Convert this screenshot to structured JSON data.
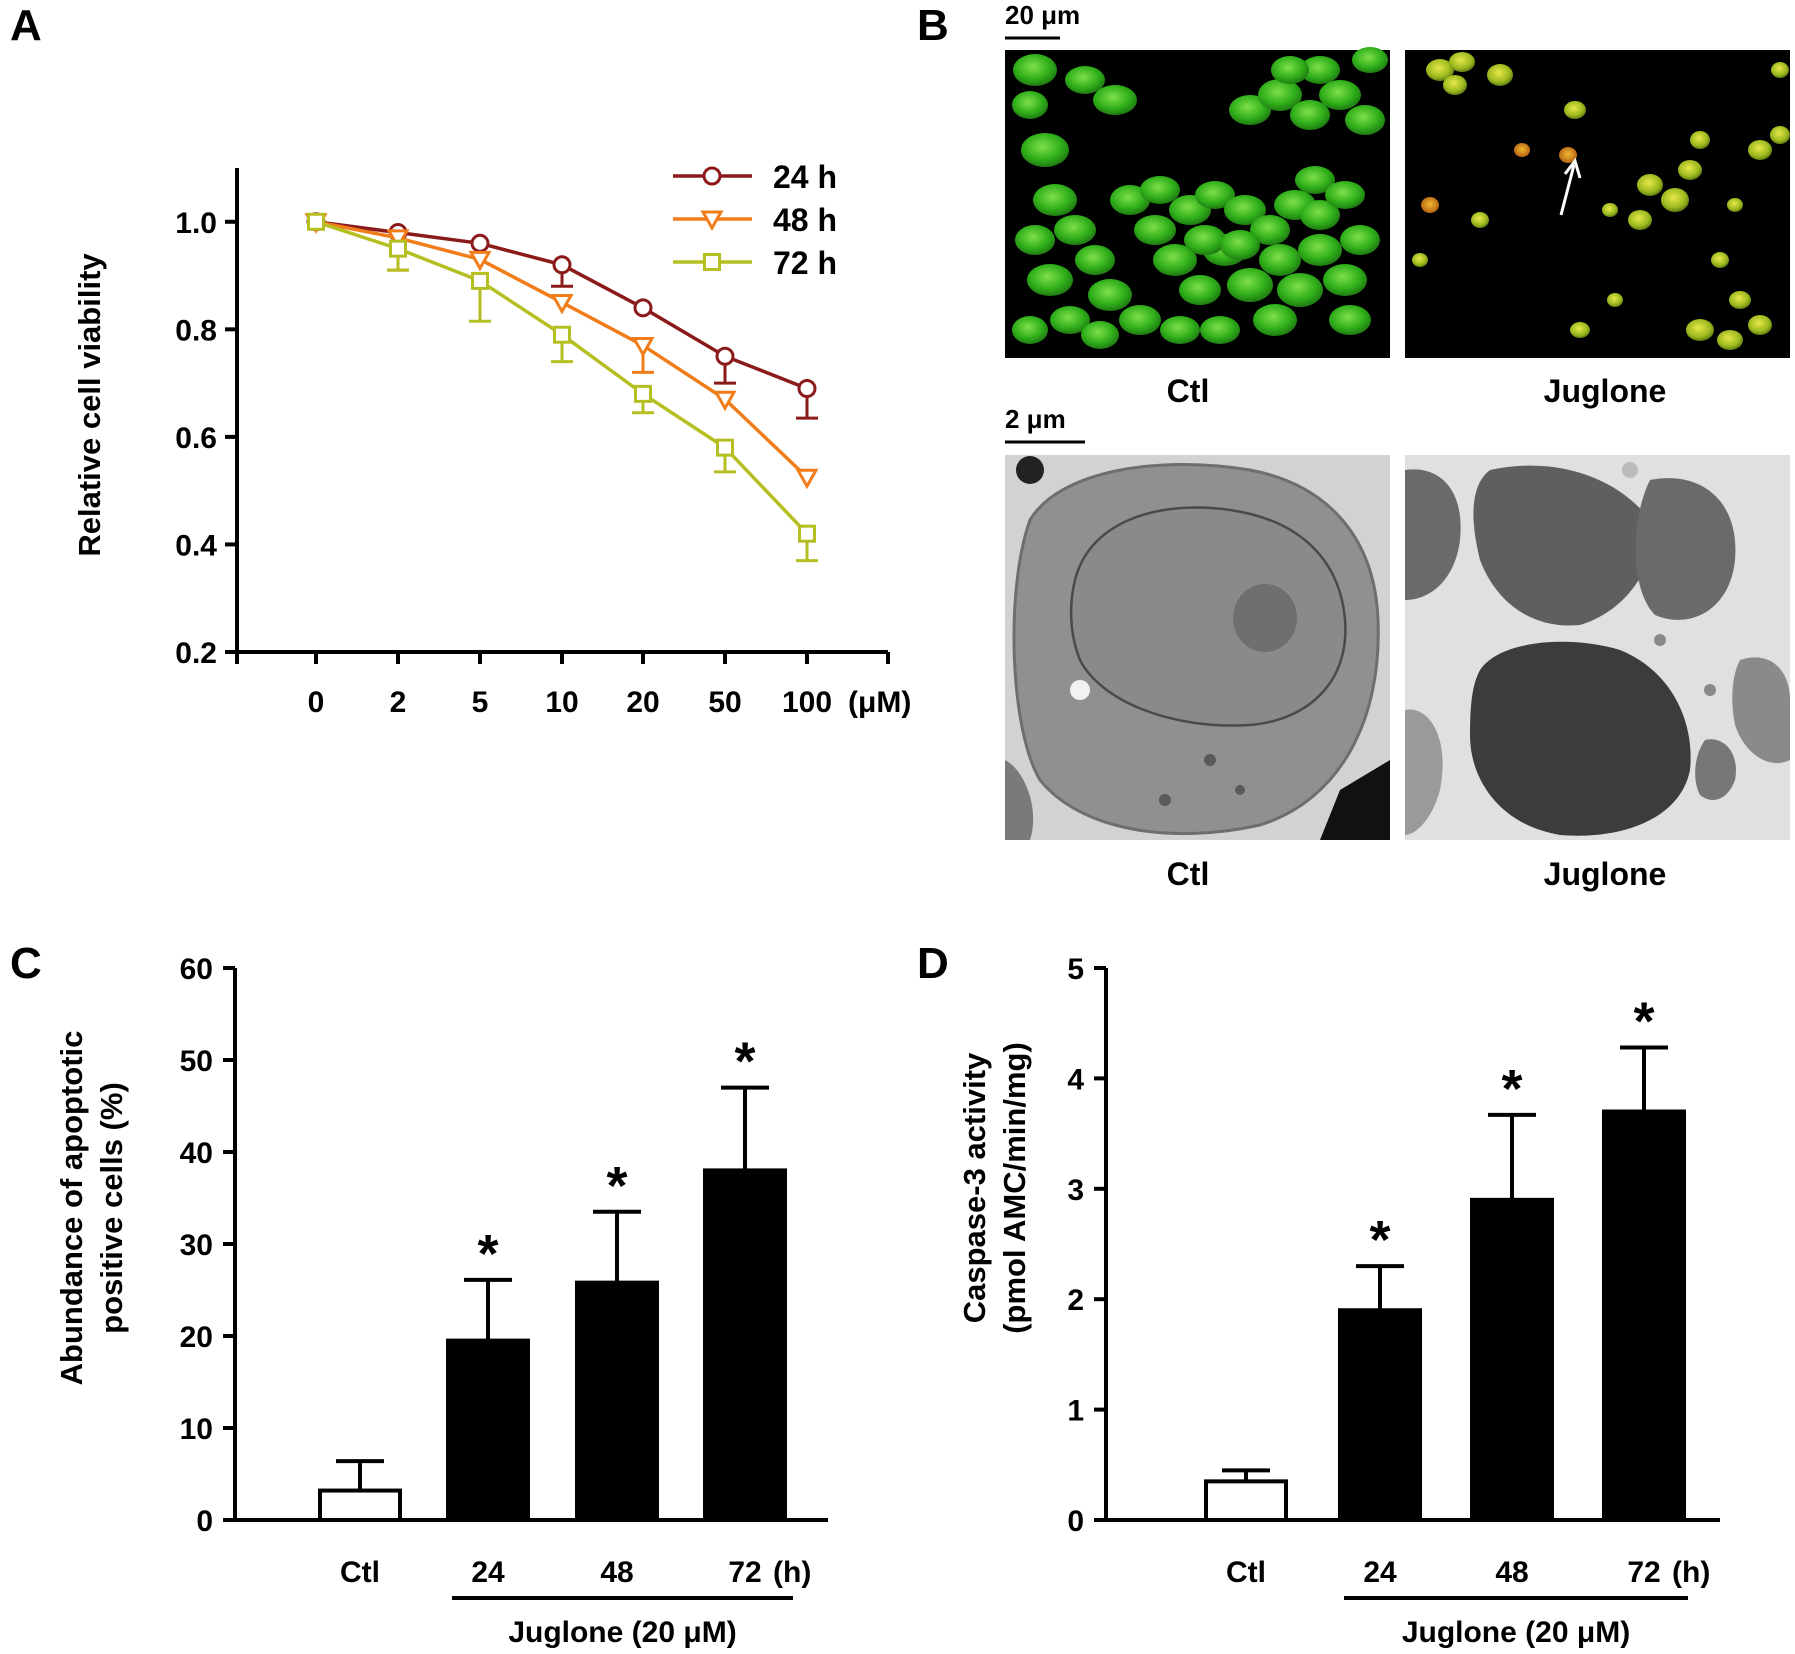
{
  "panels": {
    "A": "A",
    "B": "B",
    "C": "C",
    "D": "D"
  },
  "micrographs": {
    "top_scale": "20 μm",
    "bottom_scale": "2 μm",
    "labels": [
      "Ctl",
      "Juglone",
      "Ctl",
      "Juglone"
    ]
  },
  "chart_data": [
    {
      "panel": "A",
      "type": "line",
      "xlabel": "",
      "x_unit": "(μM)",
      "ylabel": "Relative cell viability",
      "ylim": [
        0.2,
        1.1
      ],
      "yticks": [
        0.2,
        0.4,
        0.6,
        0.8,
        1.0
      ],
      "categories": [
        "0",
        "2",
        "5",
        "10",
        "20",
        "50",
        "100"
      ],
      "legend_position": "top-right",
      "series": [
        {
          "name": "24 h",
          "color": "#8b1a1a",
          "marker": "circle",
          "values": [
            1.0,
            0.98,
            0.96,
            0.92,
            0.84,
            0.75,
            0.69
          ],
          "errors": [
            0.0,
            0.0,
            0.0,
            0.04,
            0.0,
            0.05,
            0.055
          ]
        },
        {
          "name": "48 h",
          "color": "#f07d1a",
          "marker": "triangle-down",
          "values": [
            1.0,
            0.97,
            0.93,
            0.85,
            0.77,
            0.67,
            0.525
          ],
          "errors": [
            0.0,
            0.06,
            0.0,
            0.0,
            0.05,
            0.0,
            0.0
          ]
        },
        {
          "name": "72 h",
          "color": "#b5bf22",
          "marker": "square",
          "values": [
            1.0,
            0.95,
            0.89,
            0.79,
            0.68,
            0.58,
            0.42
          ],
          "errors": [
            0.0,
            0.04,
            0.075,
            0.05,
            0.035,
            0.045,
            0.05
          ]
        }
      ]
    },
    {
      "panel": "C",
      "type": "bar",
      "ylabel_lines": [
        "Abundance of apoptotic",
        "positive cells (%)"
      ],
      "ylim": [
        0,
        60
      ],
      "yticks": [
        0,
        10,
        20,
        30,
        40,
        50,
        60
      ],
      "categories": [
        "Ctl",
        "24",
        "48",
        "72"
      ],
      "x_unit": "(h)",
      "group_label": "Juglone (20 μM)",
      "values": [
        3.2,
        19.5,
        25.8,
        38.0
      ],
      "errors": [
        3.2,
        6.6,
        7.7,
        9.0
      ],
      "significance": [
        "",
        "*",
        "*",
        "*"
      ],
      "fills": [
        "#ffffff",
        "#000000",
        "#000000",
        "#000000"
      ]
    },
    {
      "panel": "D",
      "type": "bar",
      "ylabel_lines": [
        "Caspase-3 activity",
        "(pmol AMC/min/mg)"
      ],
      "ylim": [
        0,
        5
      ],
      "yticks": [
        0,
        1,
        2,
        3,
        4,
        5
      ],
      "categories": [
        "Ctl",
        "24",
        "48",
        "72"
      ],
      "x_unit": "(h)",
      "group_label": "Juglone (20 μM)",
      "values": [
        0.35,
        1.9,
        2.9,
        3.7
      ],
      "errors": [
        0.1,
        0.4,
        0.77,
        0.58
      ],
      "significance": [
        "",
        "*",
        "*",
        "*"
      ],
      "fills": [
        "#ffffff",
        "#000000",
        "#000000",
        "#000000"
      ]
    }
  ]
}
